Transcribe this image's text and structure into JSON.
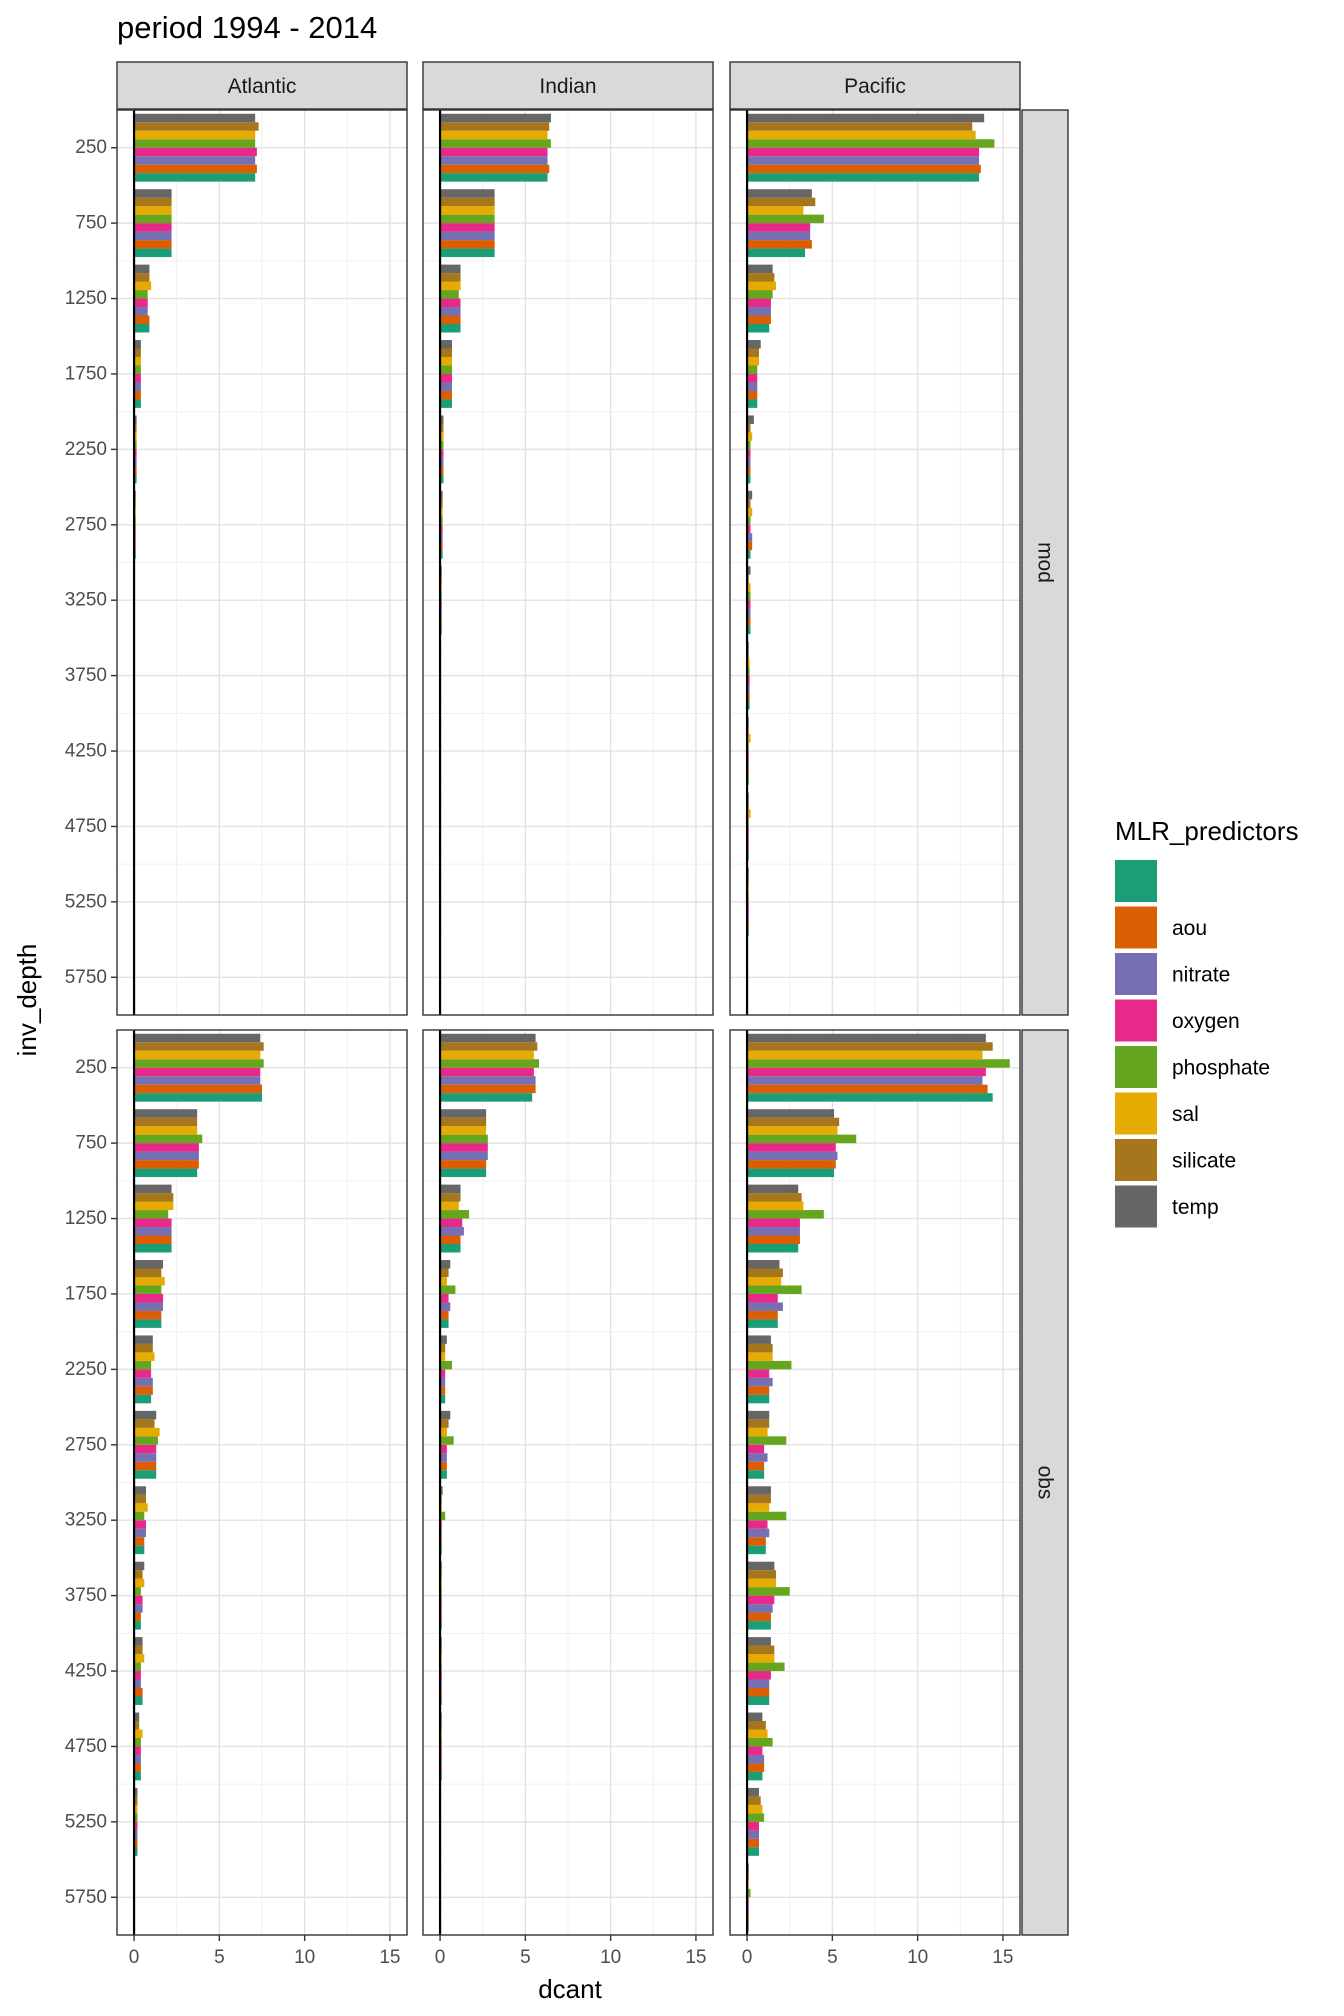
{
  "chart_data": {
    "type": "bar",
    "orientation": "horizontal",
    "title": "period 1994 - 2014",
    "xlabel": "dcant",
    "ylabel": "inv_depth",
    "xlim": [
      -1,
      16
    ],
    "x_ticks": [
      0,
      5,
      10,
      15
    ],
    "y_ticks": [
      250,
      750,
      1250,
      1750,
      2250,
      2750,
      3250,
      3750,
      4250,
      4750,
      5250,
      5750
    ],
    "ylim_reversed": [
      0,
      6000
    ],
    "grid": true,
    "legend_position": "right",
    "legend_title": "MLR_predictors",
    "col_facets": [
      "Atlantic",
      "Indian",
      "Pacific"
    ],
    "row_facets": [
      "mod",
      "obs"
    ],
    "series": [
      {
        "name": "",
        "color": "#1B9E77"
      },
      {
        "name": "aou",
        "color": "#D95F02"
      },
      {
        "name": "nitrate",
        "color": "#7570B3"
      },
      {
        "name": "oxygen",
        "color": "#E7298A"
      },
      {
        "name": "phosphate",
        "color": "#66A61E"
      },
      {
        "name": "sal",
        "color": "#E6AB02"
      },
      {
        "name": "silicate",
        "color": "#A6761D"
      },
      {
        "name": "temp",
        "color": "#666666"
      }
    ],
    "values": {
      "mod": {
        "Atlantic": {
          "250": [
            7.1,
            7.2,
            7.1,
            7.2,
            7.1,
            7.1,
            7.3,
            7.1
          ],
          "750": [
            2.2,
            2.2,
            2.2,
            2.2,
            2.2,
            2.2,
            2.2,
            2.2
          ],
          "1250": [
            0.9,
            0.9,
            0.8,
            0.8,
            0.8,
            1.0,
            0.9,
            0.9
          ],
          "1750": [
            0.4,
            0.4,
            0.4,
            0.4,
            0.4,
            0.4,
            0.4,
            0.4
          ],
          "2250": [
            0.15,
            0.15,
            0.15,
            0.15,
            0.15,
            0.15,
            0.15,
            0.15
          ],
          "2750": [
            0.1,
            0.1,
            0.1,
            0.1,
            0.1,
            0.1,
            0.1,
            0.1
          ],
          "3250": [
            0.05,
            0.05,
            0.05,
            0.05,
            0.05,
            0.05,
            0.05,
            0.05
          ],
          "3750": [
            0.05,
            0.05,
            0.05,
            0.05,
            0.05,
            0.05,
            0.05,
            0.05
          ],
          "4250": [
            0,
            0,
            0,
            0,
            0,
            0,
            0,
            0
          ],
          "4750": [
            0,
            0,
            0,
            0,
            0,
            0,
            0,
            0
          ],
          "5250": [
            0,
            0,
            0,
            0,
            0,
            0,
            0,
            0
          ],
          "5750": [
            0,
            0,
            0,
            0,
            0,
            0,
            0,
            0
          ]
        },
        "Indian": {
          "250": [
            6.3,
            6.4,
            6.3,
            6.3,
            6.5,
            6.3,
            6.4,
            6.5
          ],
          "750": [
            3.2,
            3.2,
            3.2,
            3.2,
            3.2,
            3.2,
            3.2,
            3.2
          ],
          "1250": [
            1.2,
            1.2,
            1.2,
            1.2,
            1.1,
            1.2,
            1.2,
            1.2
          ],
          "1750": [
            0.7,
            0.7,
            0.7,
            0.7,
            0.7,
            0.7,
            0.7,
            0.7
          ],
          "2250": [
            0.2,
            0.2,
            0.2,
            0.2,
            0.2,
            0.2,
            0.2,
            0.2
          ],
          "2750": [
            0.15,
            0.15,
            0.15,
            0.15,
            0.15,
            0.15,
            0.15,
            0.15
          ],
          "3250": [
            0.1,
            0.1,
            0.1,
            0.1,
            0.1,
            0.1,
            0.1,
            0.1
          ],
          "3750": [
            0.05,
            0.05,
            0.05,
            0.05,
            0.05,
            0.05,
            0.05,
            0.05
          ],
          "4250": [
            0.05,
            0.05,
            0.05,
            0.05,
            0.05,
            0.05,
            0.05,
            0.05
          ],
          "4750": [
            0.05,
            0.05,
            0.05,
            0.05,
            0.05,
            0.05,
            0.05,
            0.05
          ],
          "5250": [
            0.05,
            0.05,
            0.05,
            0.05,
            0.05,
            0.05,
            0.05,
            0.05
          ],
          "5750": [
            0,
            0,
            0,
            0,
            0,
            0,
            0,
            0
          ]
        },
        "Pacific": {
          "250": [
            13.6,
            13.7,
            13.6,
            13.6,
            14.5,
            13.4,
            13.2,
            13.9
          ],
          "750": [
            3.4,
            3.8,
            3.7,
            3.7,
            4.5,
            3.3,
            4.0,
            3.8
          ],
          "1250": [
            1.3,
            1.4,
            1.4,
            1.4,
            1.5,
            1.7,
            1.6,
            1.5
          ],
          "1750": [
            0.6,
            0.6,
            0.6,
            0.6,
            0.6,
            0.7,
            0.7,
            0.8
          ],
          "2250": [
            0.2,
            0.2,
            0.2,
            0.2,
            0.2,
            0.3,
            0.2,
            0.4
          ],
          "2750": [
            0.2,
            0.3,
            0.3,
            0.2,
            0.2,
            0.3,
            0.2,
            0.3
          ],
          "3250": [
            0.2,
            0.2,
            0.2,
            0.2,
            0.2,
            0.2,
            0.1,
            0.2
          ],
          "3750": [
            0.15,
            0.15,
            0.15,
            0.15,
            0.15,
            0.15,
            0.1,
            0.1
          ],
          "4250": [
            0.1,
            0.1,
            0.1,
            0.1,
            0.1,
            0.2,
            0.1,
            0.1
          ],
          "4750": [
            0.1,
            0.1,
            0.1,
            0.1,
            0.1,
            0.2,
            0.1,
            0.1
          ],
          "5250": [
            0.1,
            0.1,
            0.1,
            0.1,
            0.1,
            0.1,
            0.1,
            0.1
          ],
          "5750": [
            0.05,
            0.05,
            0.05,
            0.05,
            0.05,
            0.05,
            0.05,
            0.05
          ]
        }
      },
      "obs": {
        "Atlantic": {
          "250": [
            7.5,
            7.5,
            7.4,
            7.4,
            7.6,
            7.4,
            7.6,
            7.4
          ],
          "750": [
            3.7,
            3.8,
            3.8,
            3.8,
            4.0,
            3.7,
            3.7,
            3.7
          ],
          "1250": [
            2.2,
            2.2,
            2.2,
            2.2,
            2.0,
            2.3,
            2.3,
            2.2
          ],
          "1750": [
            1.6,
            1.6,
            1.7,
            1.7,
            1.6,
            1.8,
            1.6,
            1.7
          ],
          "2250": [
            1.0,
            1.1,
            1.1,
            1.0,
            1.0,
            1.2,
            1.1,
            1.1
          ],
          "2750": [
            1.3,
            1.3,
            1.3,
            1.3,
            1.4,
            1.5,
            1.2,
            1.3
          ],
          "3250": [
            0.6,
            0.6,
            0.7,
            0.7,
            0.6,
            0.8,
            0.7,
            0.7
          ],
          "3750": [
            0.4,
            0.4,
            0.5,
            0.5,
            0.4,
            0.6,
            0.5,
            0.6
          ],
          "4250": [
            0.5,
            0.5,
            0.4,
            0.4,
            0.4,
            0.6,
            0.5,
            0.5
          ],
          "4750": [
            0.4,
            0.4,
            0.4,
            0.4,
            0.4,
            0.5,
            0.3,
            0.3
          ],
          "5250": [
            0.2,
            0.2,
            0.2,
            0.2,
            0.2,
            0.2,
            0.2,
            0.2
          ],
          "5750": [
            0.05,
            0.05,
            0.05,
            0.05,
            0.05,
            0.05,
            0.05,
            0.05
          ]
        },
        "Indian": {
          "250": [
            5.4,
            5.6,
            5.6,
            5.5,
            5.8,
            5.5,
            5.7,
            5.6
          ],
          "750": [
            2.7,
            2.7,
            2.8,
            2.8,
            2.8,
            2.7,
            2.7,
            2.7
          ],
          "1250": [
            1.2,
            1.2,
            1.4,
            1.3,
            1.7,
            1.1,
            1.2,
            1.2
          ],
          "1750": [
            0.5,
            0.5,
            0.6,
            0.5,
            0.9,
            0.4,
            0.5,
            0.6
          ],
          "2250": [
            0.3,
            0.3,
            0.3,
            0.3,
            0.7,
            0.3,
            0.3,
            0.4
          ],
          "2750": [
            0.4,
            0.4,
            0.4,
            0.4,
            0.8,
            0.4,
            0.5,
            0.6
          ],
          "3250": [
            0.1,
            0.1,
            0.1,
            0.1,
            0.3,
            0.1,
            0.1,
            0.15
          ],
          "3750": [
            0.1,
            0.1,
            0.1,
            0.1,
            0.1,
            0.1,
            0.1,
            0.1
          ],
          "4250": [
            0.1,
            0.1,
            0.1,
            0.1,
            0.1,
            0.1,
            0.1,
            0.1
          ],
          "4750": [
            0.1,
            0.1,
            0.1,
            0.1,
            0.1,
            0.1,
            0.1,
            0.1
          ],
          "5250": [
            0.05,
            0.05,
            0.05,
            0.05,
            0.05,
            0.05,
            0.05,
            0.05
          ],
          "5750": [
            0.05,
            0.05,
            0.05,
            0.05,
            0.05,
            0.05,
            0.05,
            0.05
          ]
        },
        "Pacific": {
          "250": [
            14.4,
            14.1,
            13.8,
            14.0,
            15.4,
            13.8,
            14.4,
            14.0
          ],
          "750": [
            5.1,
            5.2,
            5.3,
            5.2,
            6.4,
            5.3,
            5.4,
            5.1
          ],
          "1250": [
            3.0,
            3.1,
            3.1,
            3.1,
            4.5,
            3.3,
            3.2,
            3.0
          ],
          "1750": [
            1.8,
            1.8,
            2.1,
            1.8,
            3.2,
            2.0,
            2.1,
            1.9
          ],
          "2250": [
            1.3,
            1.3,
            1.5,
            1.3,
            2.6,
            1.5,
            1.5,
            1.4
          ],
          "2750": [
            1.0,
            1.0,
            1.2,
            1.0,
            2.3,
            1.2,
            1.3,
            1.3
          ],
          "3250": [
            1.1,
            1.1,
            1.3,
            1.2,
            2.3,
            1.3,
            1.4,
            1.4
          ],
          "3750": [
            1.4,
            1.4,
            1.5,
            1.6,
            2.5,
            1.7,
            1.7,
            1.6
          ],
          "4250": [
            1.3,
            1.3,
            1.3,
            1.4,
            2.2,
            1.6,
            1.6,
            1.4
          ],
          "4750": [
            0.9,
            1.0,
            1.0,
            0.9,
            1.5,
            1.2,
            1.1,
            0.9
          ],
          "5250": [
            0.7,
            0.7,
            0.7,
            0.7,
            1.0,
            0.9,
            0.8,
            0.7
          ],
          "5750": [
            0.1,
            0.1,
            0.1,
            0.1,
            0.2,
            0.1,
            0.1,
            0.1
          ]
        }
      }
    }
  }
}
